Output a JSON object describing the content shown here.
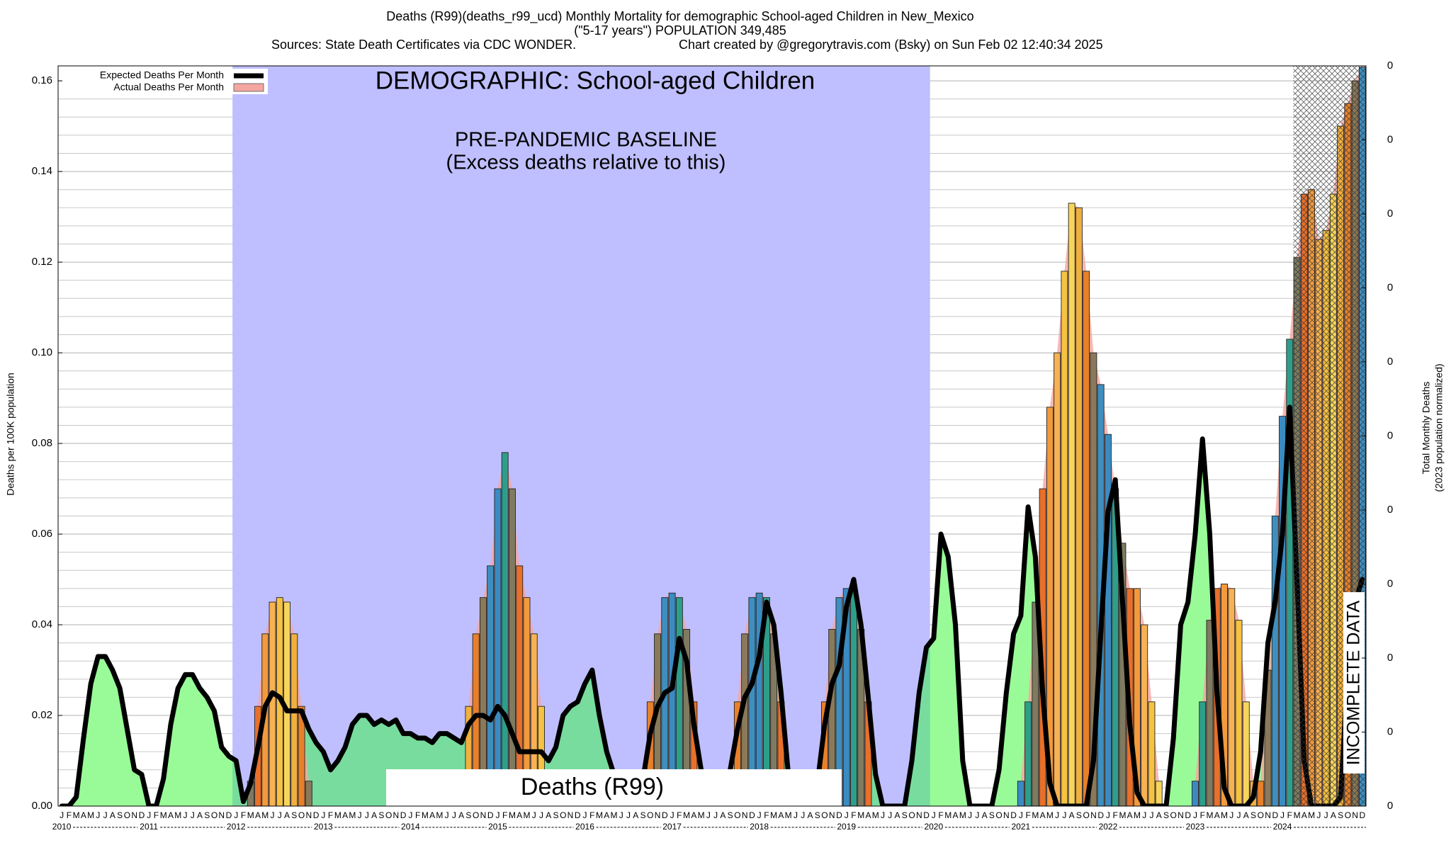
{
  "chart_data": {
    "type": "bar",
    "title": "Deaths (R99)(deaths_r99_ucd) Monthly Mortality for demographic School-aged Children in New_Mexico",
    "subtitle": "(\"5-17 years\") POPULATION 349,485",
    "sources": "Sources: State Death Certificates via CDC WONDER.",
    "credit": "Chart created by @gregorytravis.com (Bsky) on Sun Feb 02 12:40:34 2025",
    "ylabel": "Deaths per 100K population",
    "y2label": [
      "Total Monthly Deaths",
      "(2023 population normalized)"
    ],
    "annotations": {
      "demographic": "DEMOGRAPHIC: School-aged Children",
      "baseline": "PRE-PANDEMIC BASELINE",
      "baseline_note": "(Excess deaths relative to this)",
      "cause": "Deaths (R99)",
      "incomplete": "INCOMPLETE DATA"
    },
    "categories": [
      "J",
      "F",
      "M",
      "A",
      "M",
      "J",
      "J",
      "A",
      "S",
      "O",
      "N",
      "D",
      "J",
      "F",
      "M",
      "A",
      "M",
      "J",
      "J",
      "A",
      "S",
      "O",
      "N",
      "D",
      "J",
      "F",
      "M",
      "A",
      "M",
      "J",
      "J",
      "A",
      "S",
      "O",
      "N",
      "D",
      "J",
      "F",
      "M",
      "A",
      "M",
      "J",
      "J",
      "A",
      "S",
      "O",
      "N",
      "D",
      "J",
      "F",
      "M",
      "A",
      "M",
      "J",
      "J",
      "A",
      "S",
      "O",
      "N",
      "D",
      "J",
      "F",
      "M",
      "A",
      "M",
      "J",
      "J",
      "A",
      "S",
      "O",
      "N",
      "D",
      "J",
      "F",
      "M",
      "A",
      "M",
      "J",
      "J",
      "A",
      "S",
      "O",
      "N",
      "D",
      "J",
      "F",
      "M",
      "A",
      "M",
      "J",
      "J",
      "A",
      "S",
      "O",
      "N",
      "D",
      "J",
      "F",
      "M",
      "A",
      "M",
      "J",
      "J",
      "A",
      "S",
      "O",
      "N",
      "D",
      "J",
      "F",
      "M",
      "A",
      "M",
      "J",
      "J",
      "A",
      "S",
      "O",
      "N",
      "D",
      "J",
      "F",
      "M",
      "A",
      "M",
      "J",
      "J",
      "A",
      "S",
      "O",
      "N",
      "D",
      "J",
      "F",
      "M",
      "A",
      "M",
      "J",
      "J",
      "A",
      "S",
      "O",
      "N",
      "D",
      "J",
      "F",
      "M",
      "A",
      "M",
      "J",
      "J",
      "A",
      "S",
      "O",
      "N",
      "D",
      "J",
      "F",
      "M",
      "A",
      "M",
      "J",
      "J",
      "A",
      "S",
      "O",
      "N",
      "D",
      "J",
      "F",
      "M",
      "A",
      "M",
      "J",
      "J",
      "A",
      "S",
      "O",
      "N",
      "D"
    ],
    "year_labels": [
      "2010",
      "2011",
      "2012",
      "2013",
      "2014",
      "2015",
      "2016",
      "2017",
      "2018",
      "2019",
      "2020",
      "2021",
      "2022",
      "2023",
      "2024"
    ],
    "baseline_years": [
      "2012",
      "2019"
    ],
    "baseline_color": "#bfbfff",
    "fill_color": "#98fb98",
    "baseline_fill_color": "#78dc9e",
    "incomplete_start_index": 170,
    "series": [
      {
        "name": "Expected Deaths Per Month",
        "color": "#000000",
        "values": [
          0,
          0,
          0.002,
          0.015,
          0.027,
          0.033,
          0.033,
          0.03,
          0.026,
          0.017,
          0.008,
          0.007,
          0,
          0,
          0.006,
          0.018,
          0.026,
          0.029,
          0.029,
          0.026,
          0.024,
          0.021,
          0.013,
          0.011,
          0.01,
          0.001,
          0.005,
          0.013,
          0.022,
          0.025,
          0.024,
          0.021,
          0.021,
          0.021,
          0.017,
          0.014,
          0.012,
          0.008,
          0.01,
          0.013,
          0.018,
          0.02,
          0.02,
          0.018,
          0.019,
          0.018,
          0.019,
          0.016,
          0.016,
          0.015,
          0.015,
          0.014,
          0.016,
          0.016,
          0.015,
          0.014,
          0.018,
          0.02,
          0.02,
          0.019,
          0.022,
          0.02,
          0.016,
          0.012,
          0.012,
          0.012,
          0.012,
          0.01,
          0.013,
          0.02,
          0.022,
          0.023,
          0.027,
          0.03,
          0.02,
          0.012,
          0.007,
          0.004,
          0.001,
          0,
          0.006,
          0.016,
          0.022,
          0.025,
          0.026,
          0.037,
          0.032,
          0.018,
          0.008,
          0,
          0,
          0,
          0.008,
          0.017,
          0.024,
          0.027,
          0.033,
          0.045,
          0.04,
          0.025,
          0.007,
          0,
          0,
          0,
          0.005,
          0.018,
          0.027,
          0.031,
          0.044,
          0.05,
          0.04,
          0.024,
          0.007,
          0,
          0,
          0,
          0,
          0.01,
          0.025,
          0.035,
          0.037,
          0.06,
          0.055,
          0.04,
          0.01,
          0,
          0,
          0,
          0,
          0.008,
          0.025,
          0.038,
          0.042,
          0.066,
          0.055,
          0.025,
          0.005,
          0,
          0,
          0,
          0,
          0,
          0.01,
          0.038,
          0.065,
          0.072,
          0.045,
          0.018,
          0.003,
          0,
          0,
          0,
          0,
          0.015,
          0.04,
          0.045,
          0.06,
          0.081,
          0.06,
          0.025,
          0.004,
          0,
          0,
          0,
          0.002,
          0.012,
          0.036,
          0.045,
          0.06,
          0.088,
          0.05,
          0.01,
          0,
          0,
          0,
          0,
          0.002,
          0.03,
          0.045,
          0.05
        ]
      },
      {
        "name": "Actual Deaths Per Month",
        "color": "#f4a6a0",
        "month_colors": [
          "#3b8bc2",
          "#2e9e8a",
          "#7f7a60",
          "#e8702a",
          "#f39a3c",
          "#f7b253",
          "#f5c242",
          "#f7d55a",
          "#f0b040",
          "#e8802a",
          "#8a7a5a",
          "#3e8fc0"
        ],
        "values": [
          null,
          null,
          null,
          null,
          null,
          null,
          null,
          null,
          null,
          null,
          null,
          null,
          null,
          null,
          null,
          null,
          null,
          null,
          null,
          null,
          null,
          null,
          null,
          null,
          null,
          null,
          0.0055,
          0.022,
          0.038,
          0.045,
          0.046,
          0.045,
          0.038,
          0.022,
          0.0055,
          null,
          null,
          null,
          null,
          null,
          null,
          null,
          null,
          null,
          null,
          null,
          null,
          null,
          null,
          null,
          null,
          null,
          null,
          null,
          null,
          null,
          0.022,
          0.038,
          0.046,
          0.053,
          0.07,
          0.078,
          0.07,
          0.053,
          0.046,
          0.038,
          0.022,
          null,
          null,
          null,
          null,
          null,
          null,
          null,
          null,
          null,
          null,
          null,
          null,
          null,
          null,
          0.023,
          0.038,
          0.046,
          0.047,
          0.046,
          0.039,
          0.023,
          null,
          null,
          null,
          null,
          null,
          0.023,
          0.038,
          0.046,
          0.047,
          0.046,
          0.038,
          0.023,
          null,
          null,
          null,
          null,
          null,
          0.023,
          0.039,
          0.046,
          0.048,
          0.047,
          0.039,
          0.023,
          null,
          null,
          null,
          null,
          null,
          null,
          null,
          null,
          null,
          null,
          null,
          null,
          null,
          null,
          null,
          null,
          null,
          null,
          null,
          null,
          0.0055,
          0.023,
          0.045,
          0.07,
          0.088,
          0.1,
          0.118,
          0.133,
          0.132,
          0.118,
          0.1,
          0.093,
          0.082,
          0.07,
          0.058,
          0.048,
          0.048,
          0.04,
          0.023,
          0.0055,
          null,
          null,
          null,
          null,
          0.0055,
          0.023,
          0.041,
          0.048,
          0.049,
          0.048,
          0.041,
          0.023,
          0.0055,
          0.0055,
          0.03,
          0.064,
          0.086,
          0.103,
          0.121,
          0.135,
          0.136,
          0.125,
          0.127,
          0.135,
          0.15,
          0.155,
          0.16,
          0.163
        ]
      }
    ],
    "ylim": [
      0,
      0.1633
    ],
    "yticks": [
      {
        "value": 0,
        "label": "0.00"
      },
      0.02,
      0.04,
      0.06,
      0.08,
      {
        "value": 0.1,
        "label": "0.10"
      },
      0.12,
      0.14,
      0.16
    ],
    "grid": true,
    "minor_grid": [
      0.004,
      0.008,
      0.012,
      0.016,
      0.024,
      0.028,
      0.032,
      0.036,
      0.044,
      0.048,
      0.052,
      0.056,
      0.064,
      0.068,
      0.072,
      0.076,
      0.084,
      0.088,
      0.092,
      0.096,
      0.104,
      0.108,
      0.112,
      0.116,
      0.124,
      0.128,
      0.132,
      0.136,
      0.144,
      0.148,
      0.152,
      0.156
    ],
    "y2lim": [
      0,
      10
    ],
    "y2ticks": [
      0,
      {
        "value": 1,
        "label": "0"
      },
      {
        "value": 2,
        "label": "0"
      },
      {
        "value": 3,
        "label": "0"
      },
      {
        "value": 4,
        "label": "0"
      },
      {
        "value": 5,
        "label": "0"
      },
      {
        "value": 6,
        "label": "0"
      },
      {
        "value": 7,
        "label": "0"
      },
      {
        "value": 8,
        "label": "0"
      },
      {
        "value": 9,
        "label": "0"
      },
      {
        "value": 10,
        "label": "0"
      }
    ],
    "legend": "upper left"
  }
}
